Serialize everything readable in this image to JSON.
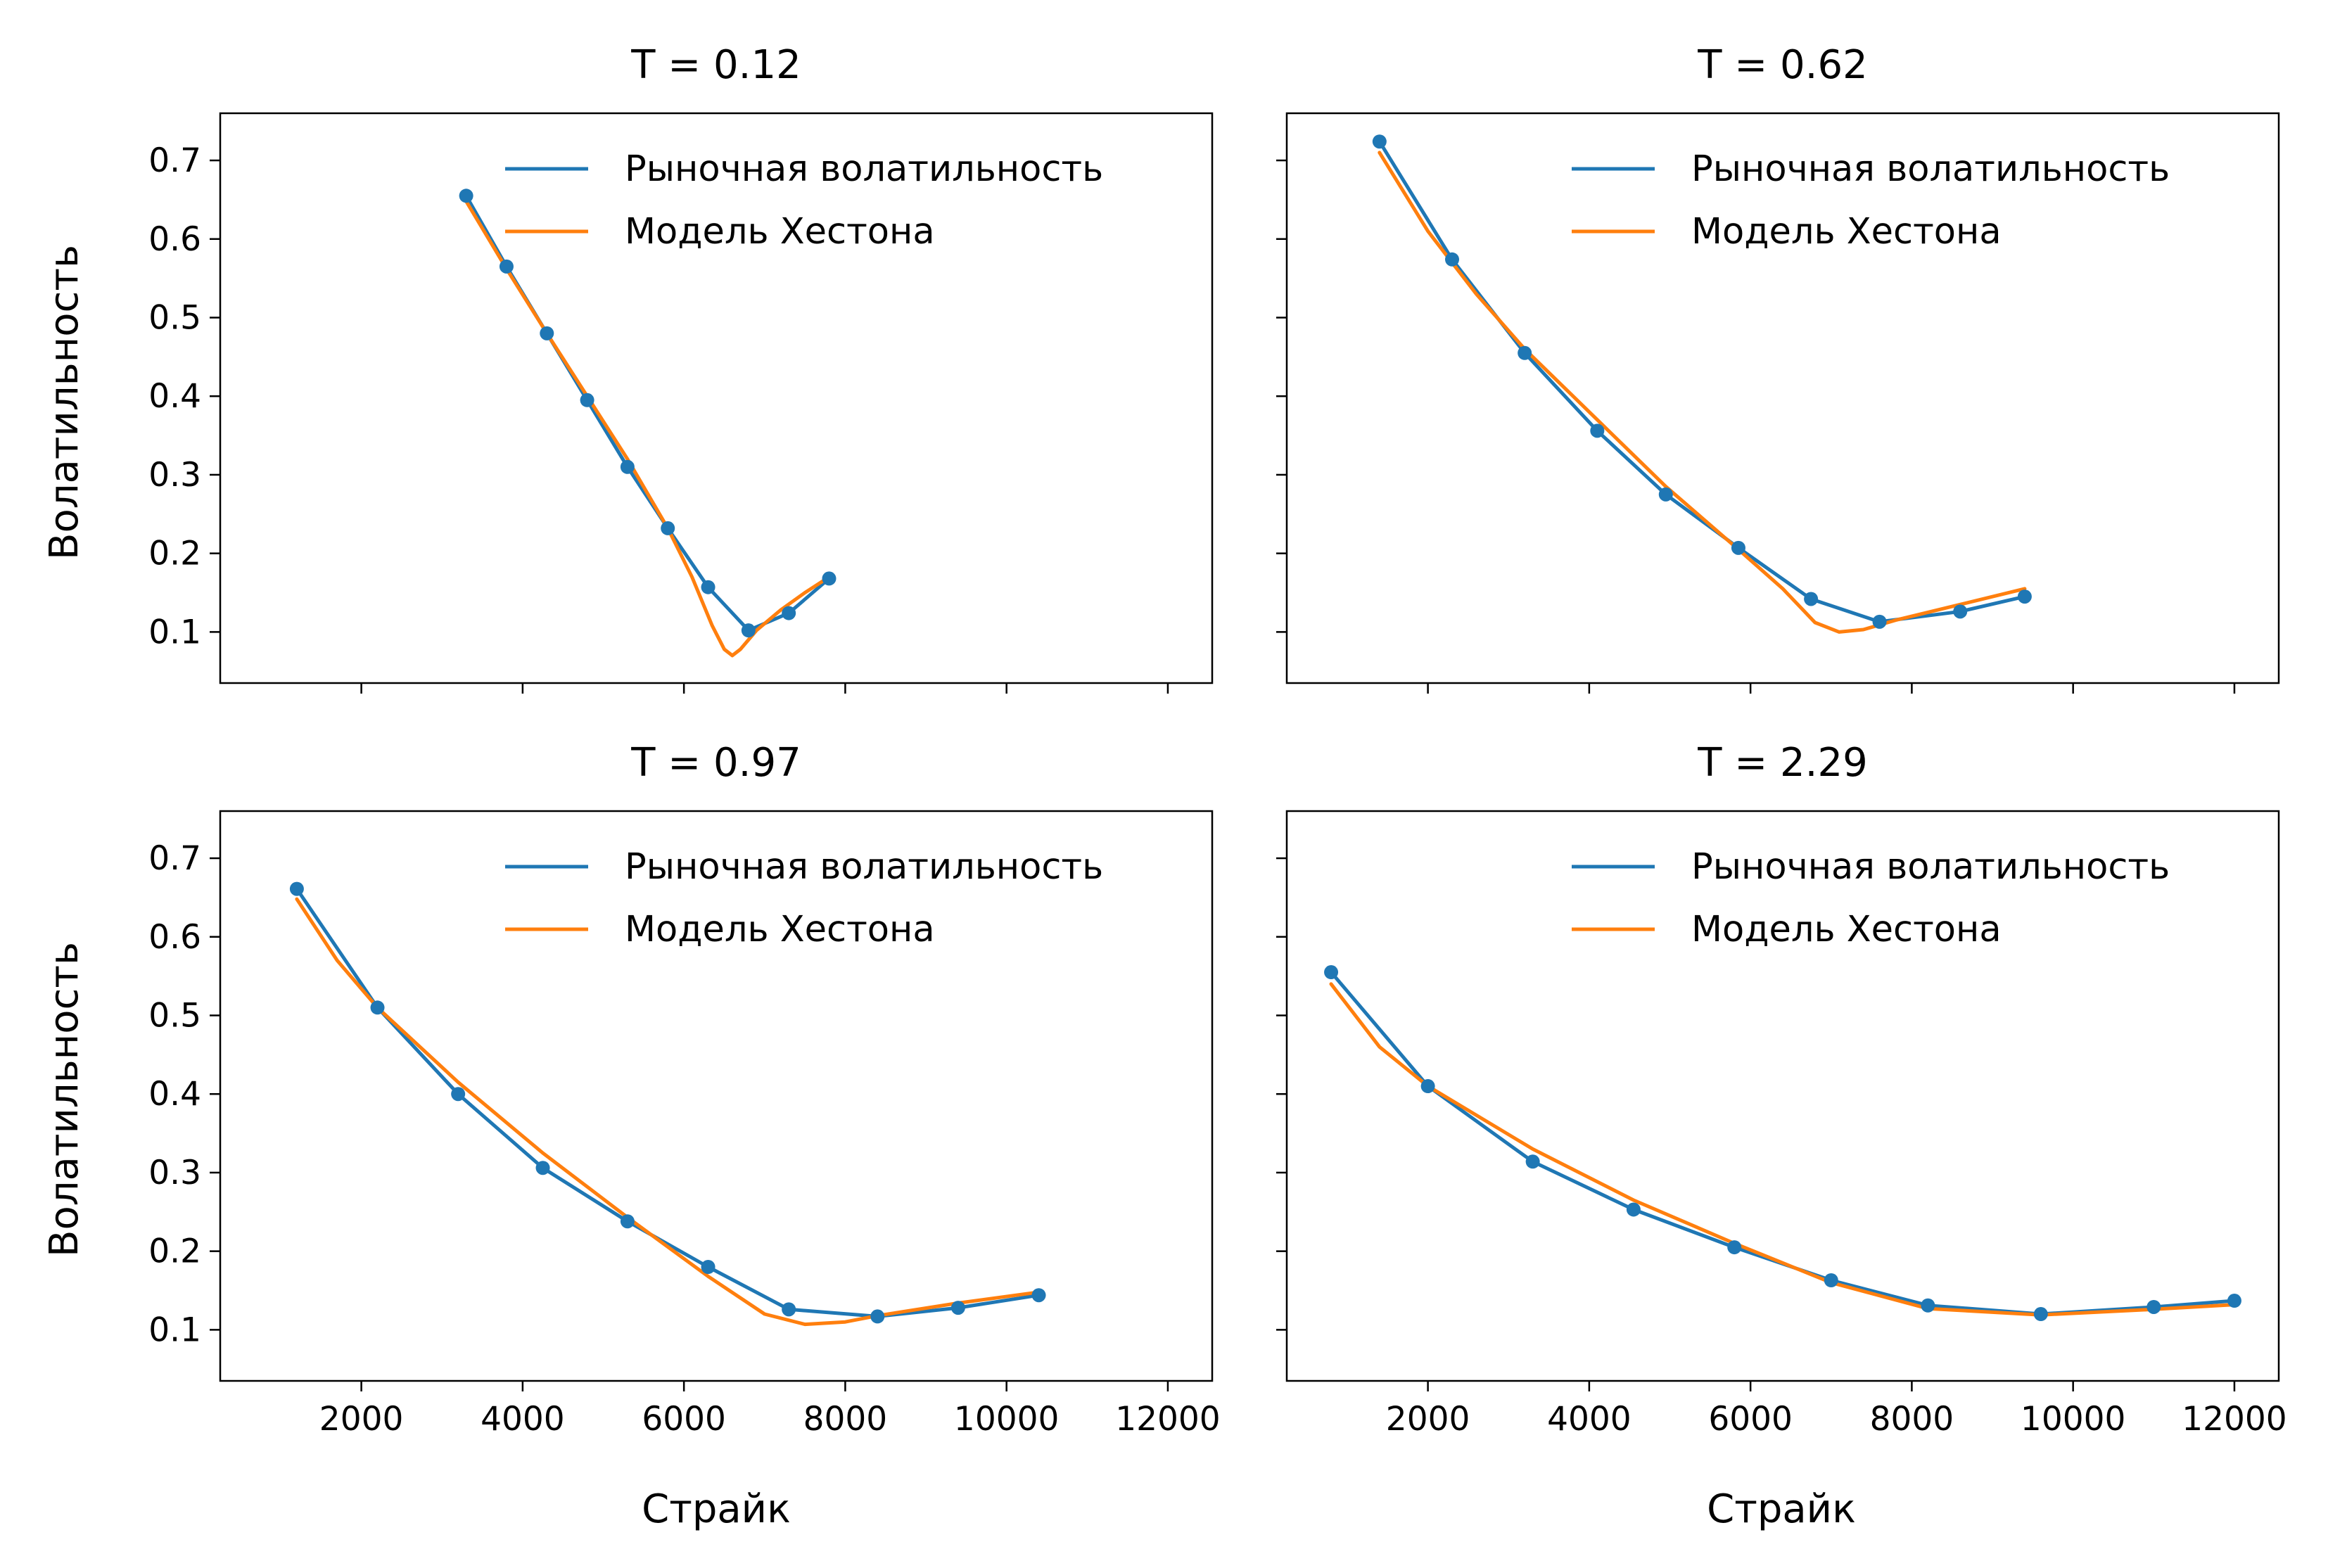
{
  "figure": {
    "xlabel": "Страйк",
    "ylabel": "Волатильность"
  },
  "chart_data": [
    {
      "type": "line",
      "title": "T = 0.12",
      "xlabel": "",
      "ylabel": "Волатильность",
      "xlim": [
        250,
        12550
      ],
      "ylim": [
        0.035,
        0.76
      ],
      "xticks": [
        2000,
        4000,
        6000,
        8000,
        10000,
        12000
      ],
      "yticks": [
        0.1,
        0.2,
        0.3,
        0.4,
        0.5,
        0.6,
        0.7
      ],
      "show_xticklabels": false,
      "show_yticklabels": true,
      "legend": "top-right",
      "series": [
        {
          "name": "Рыночная волатильность",
          "color": "#1f77b4",
          "markers": true,
          "x": [
            3300,
            3800,
            4300,
            4800,
            5300,
            5800,
            6300,
            6800,
            7300,
            7800
          ],
          "y": [
            0.655,
            0.565,
            0.48,
            0.395,
            0.31,
            0.232,
            0.157,
            0.102,
            0.124,
            0.168
          ]
        },
        {
          "name": "Модель Хестона",
          "color": "#ff7f0e",
          "markers": false,
          "x": [
            3300,
            3800,
            4300,
            4800,
            5300,
            5800,
            6100,
            6350,
            6500,
            6600,
            6700,
            6900,
            7200,
            7500,
            7800
          ],
          "y": [
            0.648,
            0.562,
            0.48,
            0.4,
            0.32,
            0.232,
            0.17,
            0.108,
            0.078,
            0.07,
            0.078,
            0.102,
            0.128,
            0.15,
            0.17
          ]
        }
      ]
    },
    {
      "type": "line",
      "title": "T = 0.62",
      "xlabel": "",
      "ylabel": "",
      "xlim": [
        250,
        12550
      ],
      "ylim": [
        0.035,
        0.76
      ],
      "xticks": [
        2000,
        4000,
        6000,
        8000,
        10000,
        12000
      ],
      "yticks": [
        0.1,
        0.2,
        0.3,
        0.4,
        0.5,
        0.6,
        0.7
      ],
      "show_xticklabels": false,
      "show_yticklabels": false,
      "legend": "top-right",
      "series": [
        {
          "name": "Рыночная волатильность",
          "color": "#1f77b4",
          "markers": true,
          "x": [
            1400,
            2300,
            3200,
            4100,
            4950,
            5850,
            6750,
            7600,
            8600,
            9400
          ],
          "y": [
            0.724,
            0.574,
            0.455,
            0.356,
            0.275,
            0.207,
            0.142,
            0.113,
            0.126,
            0.145
          ]
        },
        {
          "name": "Модель Хестона",
          "color": "#ff7f0e",
          "markers": false,
          "x": [
            1400,
            2000,
            2600,
            3200,
            4100,
            4950,
            5850,
            6400,
            6800,
            7100,
            7400,
            7800,
            8600,
            9400
          ],
          "y": [
            0.71,
            0.61,
            0.53,
            0.46,
            0.37,
            0.285,
            0.205,
            0.155,
            0.112,
            0.1,
            0.103,
            0.115,
            0.135,
            0.155
          ]
        }
      ]
    },
    {
      "type": "line",
      "title": "T = 0.97",
      "xlabel": "Страйк",
      "ylabel": "Волатильность",
      "xlim": [
        250,
        12550
      ],
      "ylim": [
        0.035,
        0.76
      ],
      "xticks": [
        2000,
        4000,
        6000,
        8000,
        10000,
        12000
      ],
      "yticks": [
        0.1,
        0.2,
        0.3,
        0.4,
        0.5,
        0.6,
        0.7
      ],
      "show_xticklabels": true,
      "show_yticklabels": true,
      "legend": "top-right",
      "series": [
        {
          "name": "Рыночная волатильность",
          "color": "#1f77b4",
          "markers": true,
          "x": [
            1200,
            2200,
            3200,
            4250,
            5300,
            6300,
            7300,
            8400,
            9400,
            10400
          ],
          "y": [
            0.661,
            0.51,
            0.4,
            0.306,
            0.238,
            0.18,
            0.126,
            0.117,
            0.128,
            0.144
          ]
        },
        {
          "name": "Модель Хестона",
          "color": "#ff7f0e",
          "markers": false,
          "x": [
            1200,
            1700,
            2200,
            3200,
            4250,
            5300,
            6300,
            7000,
            7500,
            8000,
            8400,
            9400,
            10400
          ],
          "y": [
            0.648,
            0.57,
            0.51,
            0.415,
            0.325,
            0.243,
            0.168,
            0.12,
            0.107,
            0.11,
            0.118,
            0.134,
            0.148
          ]
        }
      ]
    },
    {
      "type": "line",
      "title": "T = 2.29",
      "xlabel": "Страйк",
      "ylabel": "",
      "xlim": [
        250,
        12550
      ],
      "ylim": [
        0.035,
        0.76
      ],
      "xticks": [
        2000,
        4000,
        6000,
        8000,
        10000,
        12000
      ],
      "yticks": [
        0.1,
        0.2,
        0.3,
        0.4,
        0.5,
        0.6,
        0.7
      ],
      "show_xticklabels": true,
      "show_yticklabels": false,
      "legend": "top-right",
      "series": [
        {
          "name": "Рыночная волатильность",
          "color": "#1f77b4",
          "markers": true,
          "x": [
            800,
            2000,
            3300,
            4550,
            5800,
            7000,
            8200,
            9600,
            11000,
            12000
          ],
          "y": [
            0.555,
            0.41,
            0.314,
            0.253,
            0.205,
            0.163,
            0.131,
            0.12,
            0.129,
            0.137
          ]
        },
        {
          "name": "Модель Хестона",
          "color": "#ff7f0e",
          "markers": false,
          "x": [
            800,
            1400,
            2000,
            3300,
            4550,
            5800,
            7000,
            8200,
            9600,
            11000,
            12000
          ],
          "y": [
            0.54,
            0.46,
            0.41,
            0.33,
            0.265,
            0.21,
            0.16,
            0.127,
            0.119,
            0.126,
            0.132
          ]
        }
      ]
    }
  ]
}
